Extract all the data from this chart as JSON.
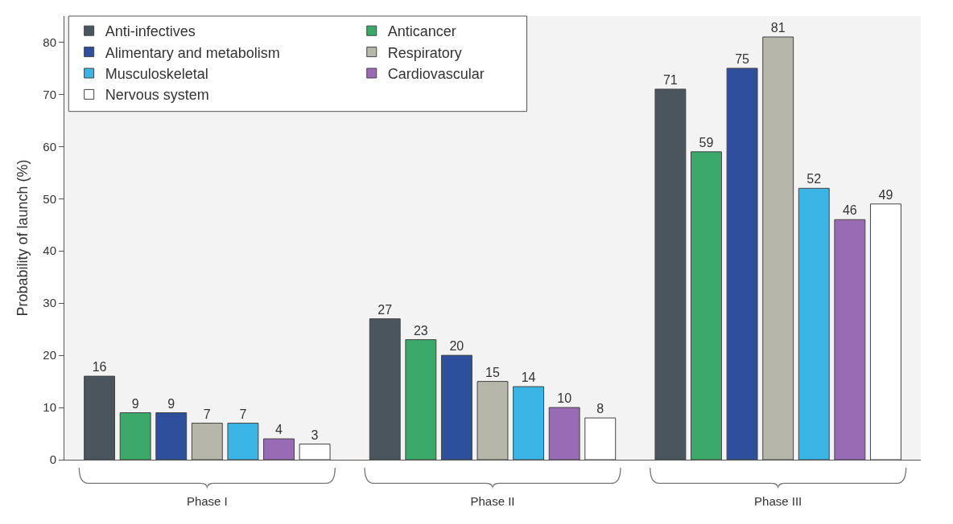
{
  "chart_data": {
    "type": "bar",
    "ylabel": "Probability of launch (%)",
    "categories": [
      "Phase I",
      "Phase II",
      "Phase III"
    ],
    "series": [
      {
        "name": "Anti-infectives",
        "color": "#4b555d",
        "values": [
          16,
          27,
          71
        ]
      },
      {
        "name": "Anticancer",
        "color": "#3aa96a",
        "values": [
          9,
          23,
          59
        ]
      },
      {
        "name": "Alimentary and metabolism",
        "color": "#2d4f9c",
        "values": [
          9,
          20,
          75
        ]
      },
      {
        "name": "Respiratory",
        "color": "#b6b6aa",
        "values": [
          7,
          15,
          81
        ]
      },
      {
        "name": "Musculoskeletal",
        "color": "#3ab5e6",
        "values": [
          7,
          14,
          52
        ]
      },
      {
        "name": "Cardiovascular",
        "color": "#9a6bb5",
        "values": [
          4,
          10,
          46
        ]
      },
      {
        "name": "Nervous system",
        "color": "#ffffff",
        "values": [
          3,
          8,
          49
        ]
      }
    ],
    "ylim": [
      0,
      85
    ],
    "yticks": [
      0,
      10,
      20,
      30,
      40,
      50,
      60,
      70,
      80
    ],
    "grid": false,
    "legend": "top left",
    "data_labels": true
  }
}
